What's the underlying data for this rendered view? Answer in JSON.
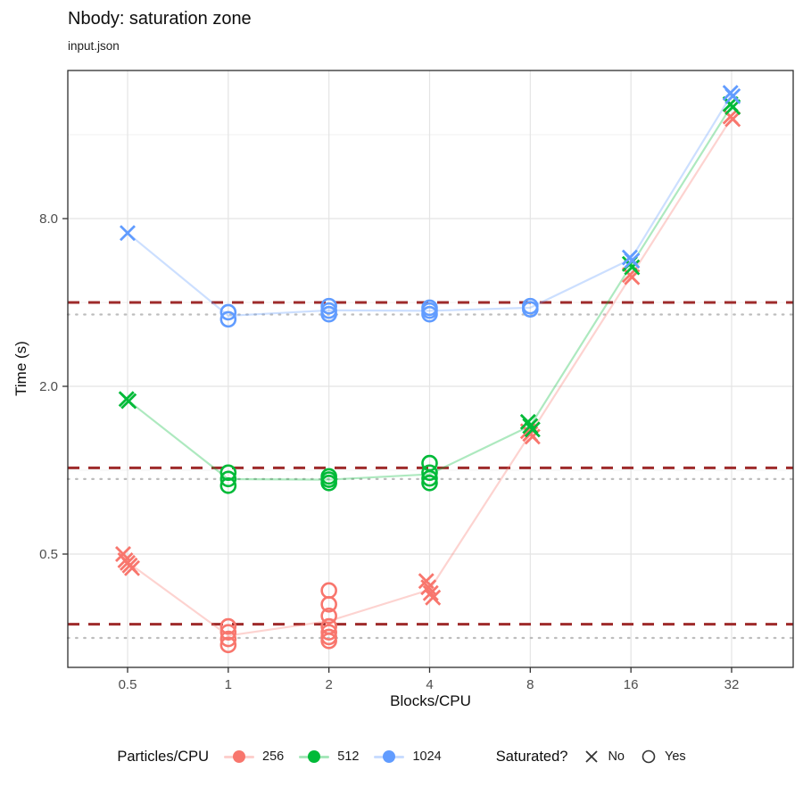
{
  "chart_data": {
    "type": "scatter",
    "title": "Nbody: saturation zone",
    "subtitle": "input.json",
    "xlabel": "Blocks/CPU",
    "ylabel": "Time (s)",
    "x_scale": "log2",
    "y_scale": "log2",
    "x_breaks": [
      0.5,
      1,
      2,
      4,
      8,
      16,
      32
    ],
    "x_break_labels": [
      "0.5",
      "1",
      "2",
      "4",
      "8",
      "16",
      "32"
    ],
    "y_breaks": [
      0.5,
      2.0,
      8.0
    ],
    "y_break_labels": [
      "0.5",
      "2.0",
      "8.0"
    ],
    "y_minor_breaks": [
      1,
      4,
      16
    ],
    "x_domain": [
      0.37,
      43
    ],
    "y_domain": [
      0.2,
      27
    ],
    "grid": "on",
    "legend_position": "bottom",
    "ref_dashed": {
      "color": "#9E2B2B",
      "values": [
        4.0,
        1.02,
        0.28
      ]
    },
    "ref_dotted": {
      "color": "#BDBDBD",
      "values": [
        3.62,
        0.93,
        0.25
      ]
    },
    "legend_color": {
      "title": "Particles/CPU"
    },
    "legend_shape": {
      "title": "Saturated?",
      "no": "No",
      "yes": "Yes"
    },
    "series": [
      {
        "name": "256",
        "color": "#F8766D",
        "points": [
          [
            0.5,
            0.5,
            "X"
          ],
          [
            0.5,
            0.475,
            "X"
          ],
          [
            0.5,
            0.465,
            "X"
          ],
          [
            0.5,
            0.455,
            "X"
          ],
          [
            0.5,
            0.445,
            "X"
          ],
          [
            1,
            0.275,
            "O"
          ],
          [
            1,
            0.262,
            "O"
          ],
          [
            1,
            0.248,
            "O"
          ],
          [
            1,
            0.236,
            "O"
          ],
          [
            2,
            0.37,
            "O"
          ],
          [
            2,
            0.33,
            "O"
          ],
          [
            2,
            0.3,
            "O"
          ],
          [
            2,
            0.275,
            "O"
          ],
          [
            2,
            0.262,
            "O"
          ],
          [
            2,
            0.252,
            "O"
          ],
          [
            2,
            0.244,
            "O"
          ],
          [
            4,
            0.4,
            "X"
          ],
          [
            4,
            0.38,
            "X"
          ],
          [
            4,
            0.362,
            "X"
          ],
          [
            4,
            0.349,
            "X"
          ],
          [
            8,
            1.38,
            "X"
          ],
          [
            8,
            1.35,
            "X"
          ],
          [
            8,
            1.32,
            "X"
          ],
          [
            16,
            5.02,
            "X"
          ],
          [
            16,
            4.93,
            "X"
          ],
          [
            32,
            18.6,
            "X"
          ],
          [
            32,
            18.2,
            "X"
          ]
        ]
      },
      {
        "name": "512",
        "color": "#00BA38",
        "points": [
          [
            0.5,
            1.8,
            "X"
          ],
          [
            0.5,
            1.77,
            "X"
          ],
          [
            1,
            0.98,
            "O"
          ],
          [
            1,
            0.93,
            "O"
          ],
          [
            1,
            0.88,
            "O"
          ],
          [
            2,
            0.95,
            "O"
          ],
          [
            2,
            0.925,
            "O"
          ],
          [
            2,
            0.9,
            "O"
          ],
          [
            4,
            1.06,
            "O"
          ],
          [
            4,
            0.98,
            "O"
          ],
          [
            4,
            0.935,
            "O"
          ],
          [
            4,
            0.9,
            "O"
          ],
          [
            8,
            1.49,
            "X"
          ],
          [
            8,
            1.44,
            "X"
          ],
          [
            8,
            1.4,
            "X"
          ],
          [
            16,
            5.5,
            "X"
          ],
          [
            16,
            5.35,
            "X"
          ],
          [
            32,
            20.6,
            "X"
          ],
          [
            32,
            20.1,
            "X"
          ]
        ]
      },
      {
        "name": "1024",
        "color": "#619CFF",
        "points": [
          [
            0.5,
            7.1,
            "X"
          ],
          [
            1,
            3.69,
            "O"
          ],
          [
            1,
            3.48,
            "O"
          ],
          [
            2,
            3.88,
            "O"
          ],
          [
            2,
            3.74,
            "O"
          ],
          [
            2,
            3.63,
            "O"
          ],
          [
            4,
            3.83,
            "O"
          ],
          [
            4,
            3.74,
            "O"
          ],
          [
            4,
            3.63,
            "O"
          ],
          [
            8,
            3.88,
            "O"
          ],
          [
            8,
            3.78,
            "O"
          ],
          [
            16,
            5.8,
            "X"
          ],
          [
            16,
            5.65,
            "X"
          ],
          [
            32,
            22.6,
            "X"
          ],
          [
            32,
            22.0,
            "X"
          ]
        ]
      }
    ]
  }
}
